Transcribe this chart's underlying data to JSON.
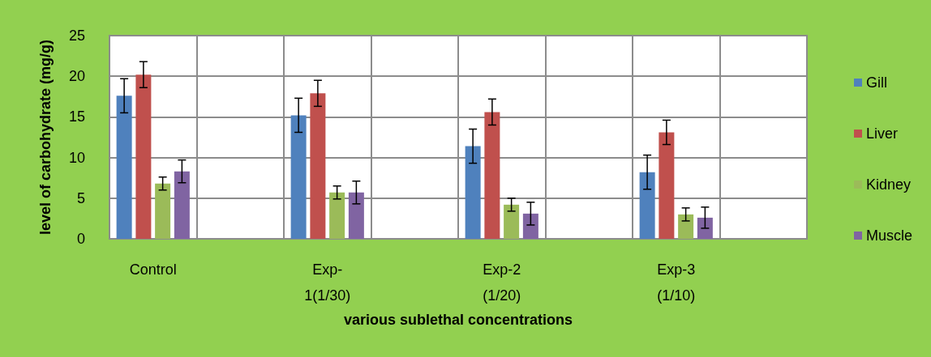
{
  "chart_data": {
    "type": "bar",
    "xlabel": "various sublethal concentrations",
    "ylabel": "level of carbohydrate (mg/g)",
    "categories": [
      "Control",
      null,
      "Exp-\n1(1/30)",
      null,
      "Exp-2\n(1/20)",
      null,
      "Exp-3\n(1/10)",
      null
    ],
    "series": [
      {
        "name": "Gill",
        "color": "#4f81bd",
        "values": [
          17.6,
          null,
          15.2,
          null,
          11.4,
          null,
          8.2,
          null
        ],
        "errors": [
          2.1,
          null,
          2.1,
          null,
          2.1,
          null,
          2.1,
          null
        ]
      },
      {
        "name": "Liver",
        "color": "#c0504d",
        "values": [
          20.2,
          null,
          17.9,
          null,
          15.6,
          null,
          13.1,
          null
        ],
        "errors": [
          1.6,
          null,
          1.6,
          null,
          1.6,
          null,
          1.5,
          null
        ]
      },
      {
        "name": "Kidney",
        "color": "#9bbb59",
        "values": [
          6.8,
          null,
          5.7,
          null,
          4.2,
          null,
          3.0,
          null
        ],
        "errors": [
          0.8,
          null,
          0.8,
          null,
          0.8,
          null,
          0.8,
          null
        ]
      },
      {
        "name": "Muscle",
        "color": "#8064a2",
        "values": [
          8.3,
          null,
          5.7,
          null,
          3.1,
          null,
          2.6,
          null
        ],
        "errors": [
          1.4,
          null,
          1.4,
          null,
          1.4,
          null,
          1.3,
          null
        ]
      }
    ],
    "ylim": [
      0,
      25
    ],
    "yticks": [
      0,
      5,
      10,
      15,
      20,
      25
    ],
    "grid": true,
    "legend": "right"
  }
}
